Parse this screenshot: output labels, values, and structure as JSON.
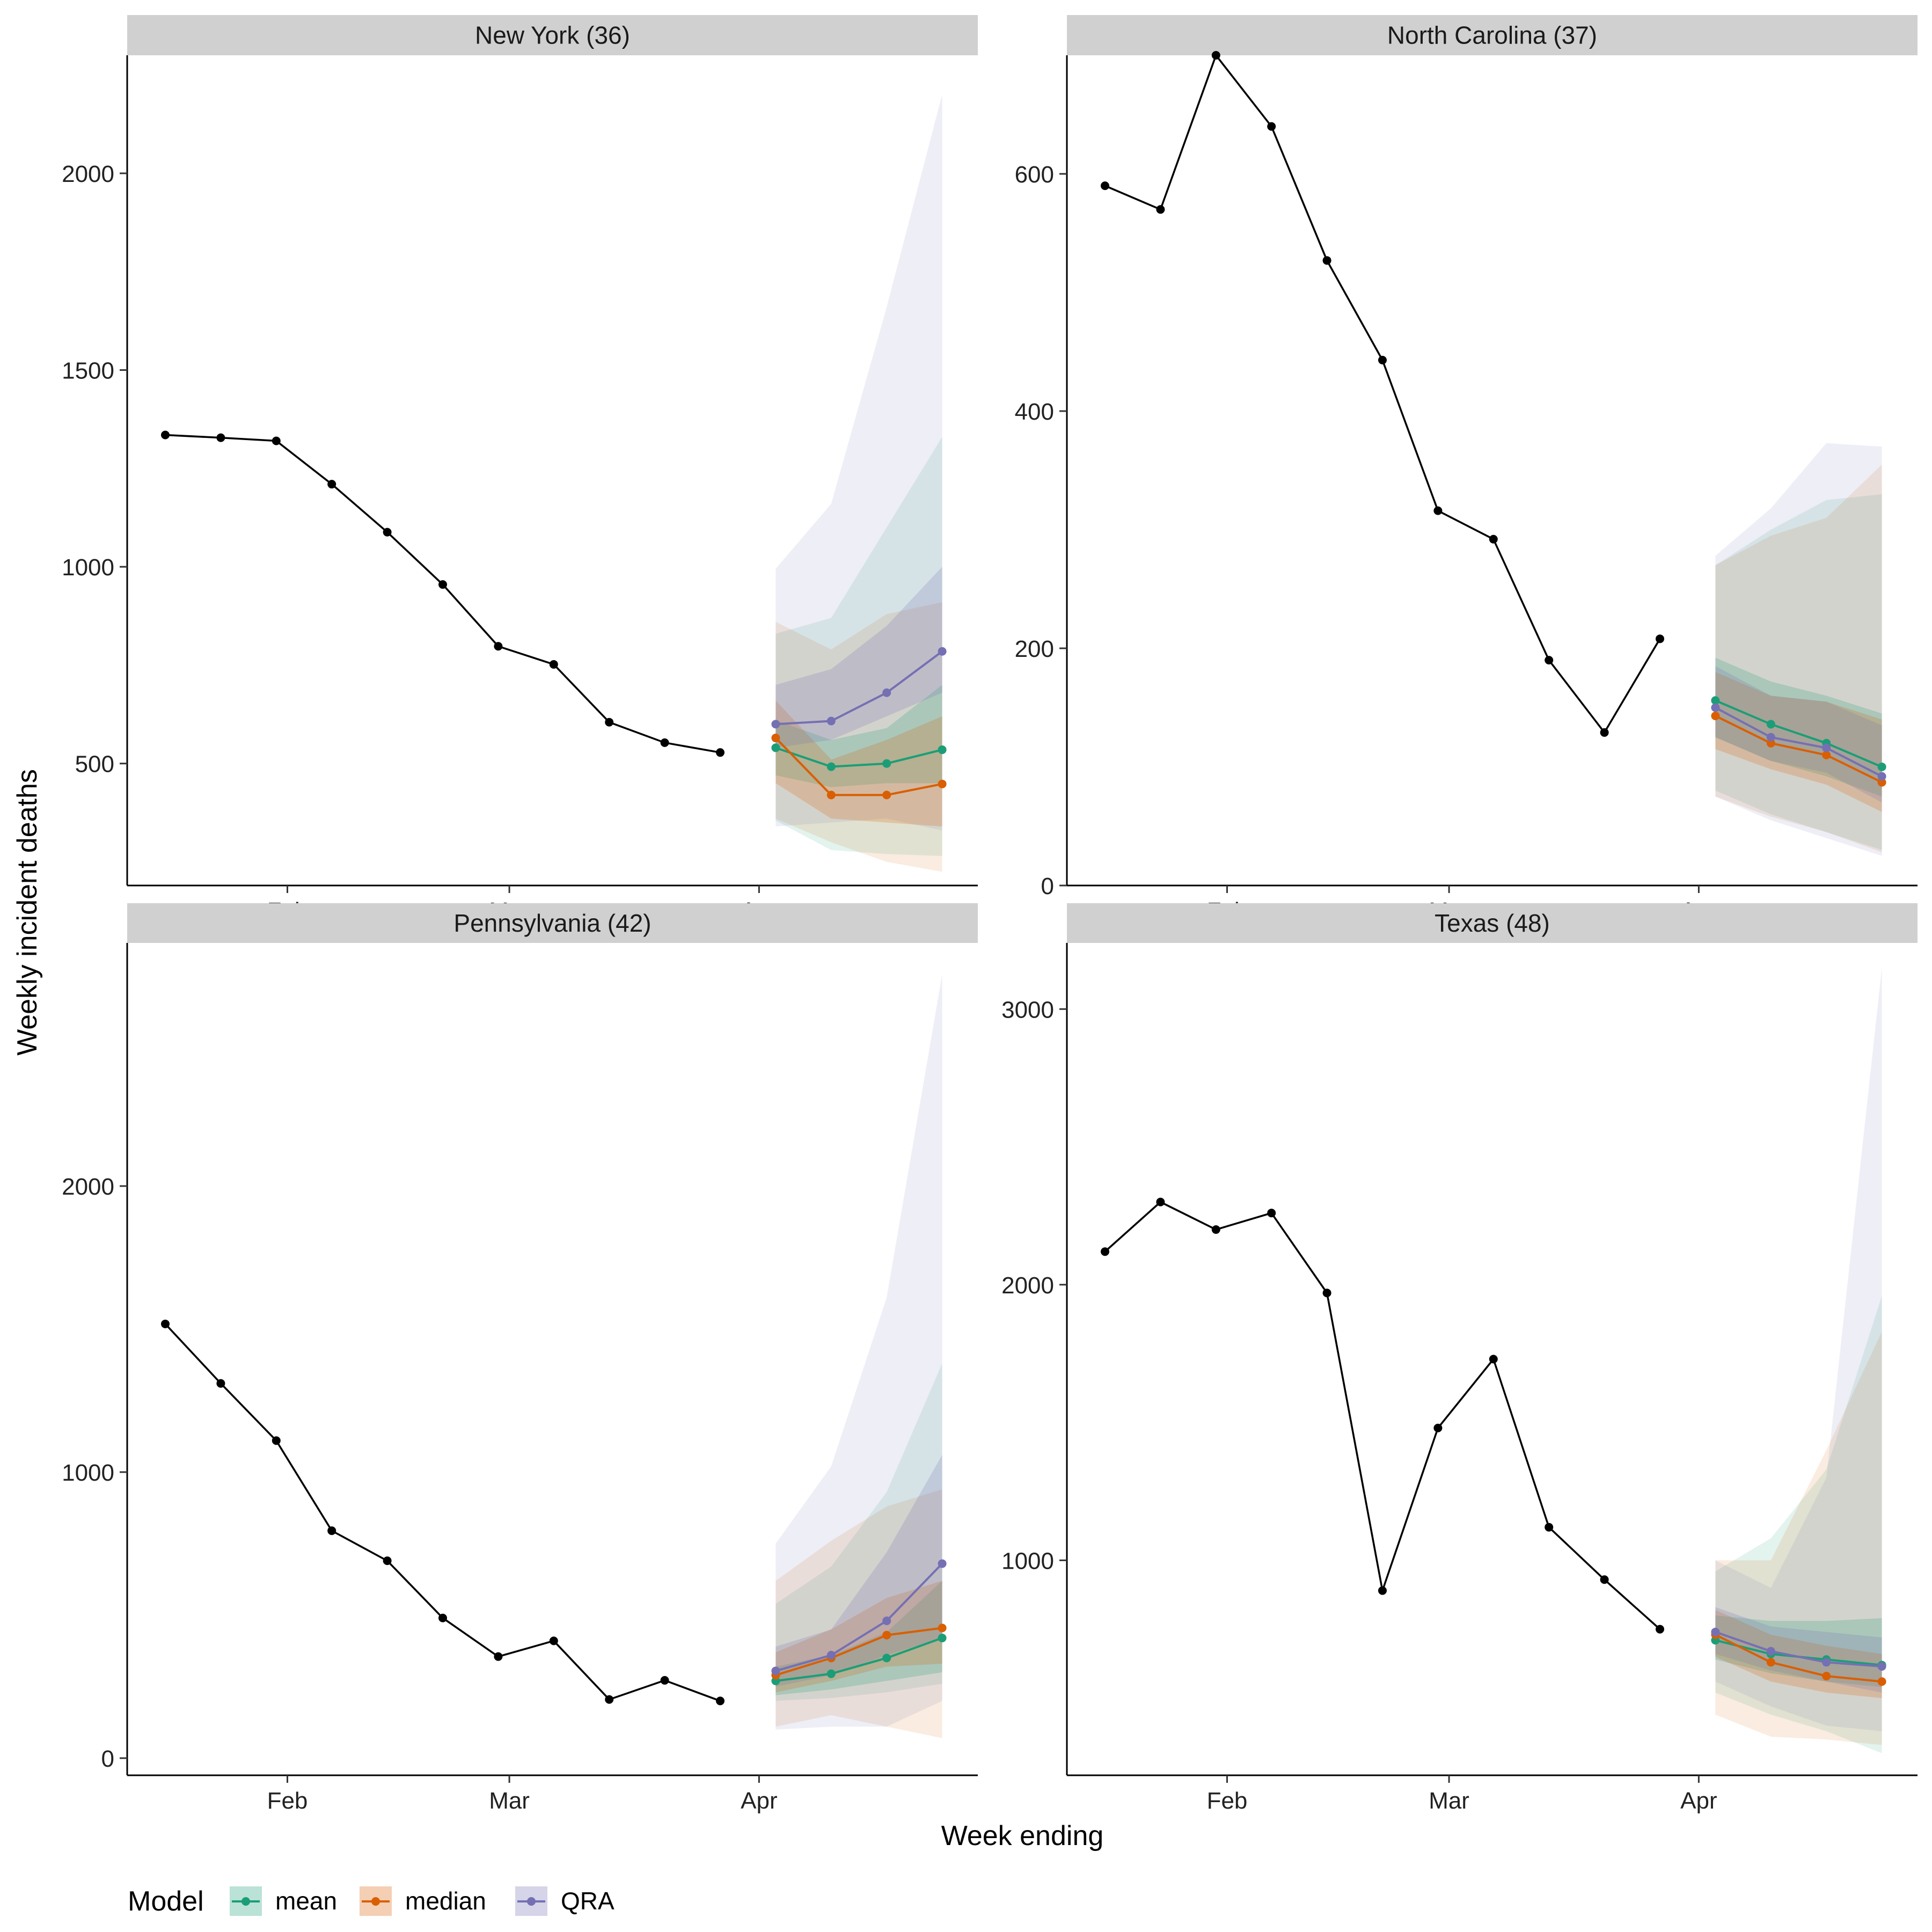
{
  "figure": {
    "xlabel": "Week ending",
    "ylabel": "Weekly incident deaths",
    "legend_title": "Model",
    "legend_position": "bottom-left",
    "colors": {
      "observed": "#000000",
      "mean": "#1b9e77",
      "median": "#d95f02",
      "QRA": "#7570b3",
      "strip": "#d0d0d0"
    }
  },
  "legend": [
    {
      "name": "mean",
      "color": "#1b9e77"
    },
    {
      "name": "median",
      "color": "#d95f02"
    },
    {
      "name": "QRA",
      "color": "#7570b3"
    }
  ],
  "chart_data": [
    {
      "type": "line",
      "title": "New York (36)",
      "x_tick_labels": [
        "Feb",
        "Mar",
        "Apr"
      ],
      "x_ticks_week_index": [
        2.2,
        6.2,
        10.7
      ],
      "ylim": [
        190,
        2300
      ],
      "y_ticks": [
        500,
        1000,
        1500,
        2000
      ],
      "observed": {
        "week_index": [
          0,
          1,
          2,
          3,
          4,
          5,
          6,
          7,
          8,
          9,
          10
        ],
        "values": [
          1335,
          1328,
          1320,
          1210,
          1088,
          955,
          798,
          752,
          605,
          553,
          528
        ]
      },
      "forecast_week_index": [
        11,
        12,
        13,
        14
      ],
      "series": [
        {
          "name": "mean",
          "values": [
            540,
            492,
            500,
            535
          ],
          "band50": [
            [
              470,
              610
            ],
            [
              440,
              560
            ],
            [
              450,
              590
            ],
            [
              450,
              700
            ]
          ],
          "band95": [
            [
              355,
              830
            ],
            [
              280,
              870
            ],
            [
              270,
              1100
            ],
            [
              265,
              1330
            ]
          ]
        },
        {
          "name": "median",
          "values": [
            565,
            420,
            420,
            448
          ],
          "band50": [
            [
              450,
              660
            ],
            [
              360,
              510
            ],
            [
              350,
              560
            ],
            [
              340,
              620
            ]
          ],
          "band95": [
            [
              360,
              860
            ],
            [
              300,
              790
            ],
            [
              250,
              880
            ],
            [
              225,
              910
            ]
          ]
        },
        {
          "name": "QRA",
          "values": [
            600,
            608,
            680,
            785
          ],
          "band50": [
            [
              540,
              700
            ],
            [
              560,
              740
            ],
            [
              620,
              850
            ],
            [
              680,
              1000
            ]
          ],
          "band95": [
            [
              340,
              995
            ],
            [
              350,
              1160
            ],
            [
              360,
              1660
            ],
            [
              330,
              2200
            ]
          ]
        }
      ]
    },
    {
      "type": "line",
      "title": "North Carolina (37)",
      "x_tick_labels": [
        "Feb",
        "Mar",
        "Apr"
      ],
      "x_ticks_week_index": [
        2.2,
        6.2,
        10.7
      ],
      "ylim": [
        0,
        700
      ],
      "y_ticks": [
        0,
        200,
        400,
        600
      ],
      "observed": {
        "week_index": [
          0,
          1,
          2,
          3,
          4,
          5,
          6,
          7,
          8,
          9,
          10
        ],
        "values": [
          590,
          570,
          700,
          640,
          527,
          443,
          316,
          292,
          190,
          129,
          208
        ]
      },
      "forecast_week_index": [
        11,
        12,
        13,
        14
      ],
      "series": [
        {
          "name": "mean",
          "values": [
            156,
            136,
            120,
            100
          ],
          "band50": [
            [
              125,
              192
            ],
            [
              105,
              172
            ],
            [
              92,
              160
            ],
            [
              75,
              145
            ]
          ],
          "band95": [
            [
              80,
              270
            ],
            [
              60,
              300
            ],
            [
              45,
              325
            ],
            [
              30,
              330
            ]
          ]
        },
        {
          "name": "median",
          "values": [
            143,
            120,
            110,
            87
          ],
          "band50": [
            [
              115,
              180
            ],
            [
              98,
              160
            ],
            [
              85,
              155
            ],
            [
              62,
              140
            ]
          ],
          "band95": [
            [
              75,
              270
            ],
            [
              58,
              295
            ],
            [
              45,
              310
            ],
            [
              28,
              355
            ]
          ]
        },
        {
          "name": "QRA",
          "values": [
            150,
            125,
            116,
            92
          ],
          "band50": [
            [
              125,
              185
            ],
            [
              105,
              160
            ],
            [
              95,
              155
            ],
            [
              70,
              135
            ]
          ],
          "band95": [
            [
              75,
              278
            ],
            [
              55,
              318
            ],
            [
              40,
              373
            ],
            [
              25,
              370
            ]
          ]
        }
      ]
    },
    {
      "type": "line",
      "title": "Pennsylvania (42)",
      "x_tick_labels": [
        "Feb",
        "Mar",
        "Apr"
      ],
      "x_ticks_week_index": [
        2.2,
        6.2,
        10.7
      ],
      "ylim": [
        -60,
        2850
      ],
      "y_ticks": [
        0,
        1000,
        2000
      ],
      "observed": {
        "week_index": [
          0,
          1,
          2,
          3,
          4,
          5,
          6,
          7,
          8,
          9,
          10
        ],
        "values": [
          1518,
          1310,
          1110,
          795,
          690,
          490,
          355,
          410,
          205,
          272,
          200
        ]
      },
      "forecast_week_index": [
        11,
        12,
        13,
        14
      ],
      "series": [
        {
          "name": "mean",
          "values": [
            270,
            295,
            350,
            420
          ],
          "band50": [
            [
              220,
              320
            ],
            [
              240,
              360
            ],
            [
              270,
              440
            ],
            [
              300,
              620
            ]
          ],
          "band95": [
            [
              200,
              540
            ],
            [
              210,
              670
            ],
            [
              230,
              930
            ],
            [
              260,
              1380
            ]
          ]
        },
        {
          "name": "median",
          "values": [
            290,
            350,
            430,
            455
          ],
          "band50": [
            [
              230,
              370
            ],
            [
              270,
              450
            ],
            [
              320,
              560
            ],
            [
              330,
              620
            ]
          ],
          "band95": [
            [
              110,
              620
            ],
            [
              150,
              760
            ],
            [
              110,
              880
            ],
            [
              70,
              940
            ]
          ]
        },
        {
          "name": "QRA",
          "values": [
            305,
            360,
            480,
            680
          ],
          "band50": [
            [
              250,
              390
            ],
            [
              290,
              450
            ],
            [
              360,
              720
            ],
            [
              420,
              1060
            ]
          ],
          "band95": [
            [
              100,
              750
            ],
            [
              110,
              1020
            ],
            [
              110,
              1610
            ],
            [
              200,
              2740
            ]
          ]
        }
      ]
    },
    {
      "type": "line",
      "title": "Texas (48)",
      "x_tick_labels": [
        "Feb",
        "Mar",
        "Apr"
      ],
      "x_ticks_week_index": [
        2.2,
        6.2,
        10.7
      ],
      "ylim": [
        220,
        3240
      ],
      "y_ticks": [
        1000,
        2000,
        3000
      ],
      "observed": {
        "week_index": [
          0,
          1,
          2,
          3,
          4,
          5,
          6,
          7,
          8,
          9,
          10
        ],
        "values": [
          2120,
          2300,
          2200,
          2260,
          1970,
          890,
          1480,
          1730,
          1120,
          930,
          750
        ]
      },
      "forecast_week_index": [
        11,
        12,
        13,
        14
      ],
      "series": [
        {
          "name": "mean",
          "values": [
            710,
            660,
            640,
            620
          ],
          "band50": [
            [
              640,
              800
            ],
            [
              590,
              780
            ],
            [
              560,
              780
            ],
            [
              540,
              790
            ]
          ],
          "band95": [
            [
              520,
              960
            ],
            [
              440,
              1080
            ],
            [
              380,
              1330
            ],
            [
              300,
              1960
            ]
          ]
        },
        {
          "name": "median",
          "values": [
            730,
            630,
            580,
            560
          ],
          "band50": [
            [
              650,
              820
            ],
            [
              560,
              730
            ],
            [
              520,
              690
            ],
            [
              500,
              660
            ]
          ],
          "band95": [
            [
              440,
              1000
            ],
            [
              360,
              1000
            ],
            [
              350,
              1400
            ],
            [
              330,
              1830
            ]
          ]
        },
        {
          "name": "QRA",
          "values": [
            740,
            670,
            630,
            615
          ],
          "band50": [
            [
              660,
              830
            ],
            [
              600,
              760
            ],
            [
              560,
              740
            ],
            [
              520,
              720
            ]
          ],
          "band95": [
            [
              560,
              1000
            ],
            [
              470,
              900
            ],
            [
              400,
              1300
            ],
            [
              380,
              3150
            ]
          ]
        }
      ]
    }
  ]
}
